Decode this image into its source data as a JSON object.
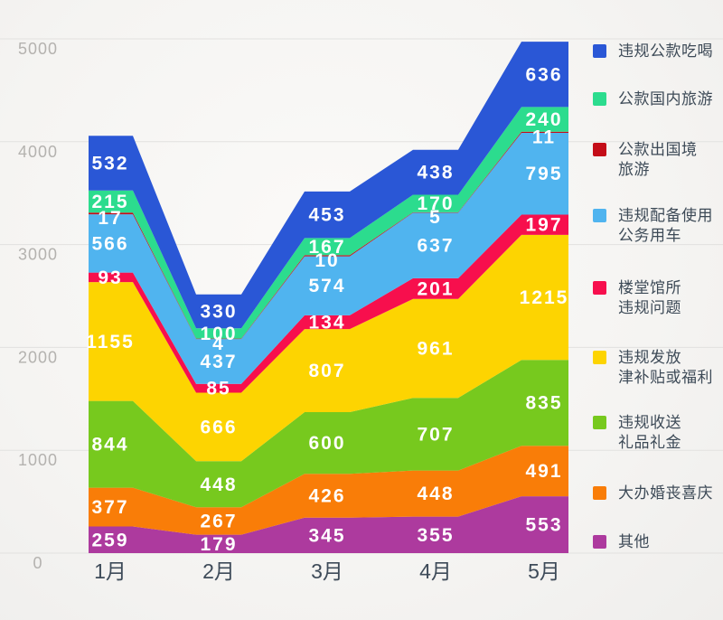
{
  "chart_data": {
    "type": "area",
    "stacked": true,
    "title": "",
    "xlabel": "",
    "ylabel": "",
    "x": [
      "1月",
      "2月",
      "3月",
      "4月",
      "5月"
    ],
    "y_ticks": [
      0,
      1000,
      2000,
      3000,
      4000,
      5000
    ],
    "ylim": [
      0,
      5000
    ],
    "grid": true,
    "legend_position": "right",
    "series_bottom_to_top": [
      {
        "name": "其他",
        "color": "#ad3a9e",
        "values": [
          259,
          179,
          345,
          355,
          553
        ]
      },
      {
        "name": "大办婚丧喜庆",
        "color": "#f97d08",
        "values": [
          377,
          267,
          426,
          448,
          491
        ]
      },
      {
        "name": "违规收送礼品礼金",
        "color": "#77c91e",
        "values": [
          844,
          448,
          600,
          707,
          835
        ]
      },
      {
        "name": "违规发放津补贴或福利",
        "color": "#fdd401",
        "values": [
          1155,
          666,
          807,
          961,
          1215
        ]
      },
      {
        "name": "楼堂馆所违规问题",
        "color": "#f70f4d",
        "values": [
          93,
          85,
          134,
          201,
          197
        ]
      },
      {
        "name": "违规配备使用公务用车",
        "color": "#50b4ef",
        "values": [
          566,
          437,
          574,
          637,
          795
        ]
      },
      {
        "name": "公款出国境旅游",
        "color": "#c40d18",
        "values": [
          17,
          4,
          10,
          5,
          11
        ]
      },
      {
        "name": "公款国内旅游",
        "color": "#2cdc8e",
        "values": [
          215,
          100,
          167,
          170,
          240
        ]
      },
      {
        "name": "违规公款吃喝",
        "color": "#2a57d6",
        "values": [
          532,
          330,
          453,
          438,
          636
        ]
      }
    ]
  },
  "legend": {
    "items": [
      {
        "label": "违规公款吃喝",
        "color": "#2a57d6"
      },
      {
        "label": "公款国内旅游",
        "color": "#2cdc8e"
      },
      {
        "label": "公款出国境\n旅游",
        "color": "#c40d18"
      },
      {
        "label": "违规配备使用\n公务用车",
        "color": "#50b4ef"
      },
      {
        "label": "楼堂馆所\n违规问题",
        "color": "#f70f4d"
      },
      {
        "label": "违规发放\n津补贴或福利",
        "color": "#fdd401"
      },
      {
        "label": "违规收送\n礼品礼金",
        "color": "#77c91e"
      },
      {
        "label": "大办婚丧喜庆",
        "color": "#f97d08"
      },
      {
        "label": "其他",
        "color": "#ad3a9e"
      }
    ]
  },
  "colors": {
    "gridline": "#e2e1df",
    "y_tick_text": "#b4b2af",
    "x_tick_text": "#3e4b59",
    "legend_text": "#3d4a57",
    "value_label_text": "#ffffff"
  }
}
